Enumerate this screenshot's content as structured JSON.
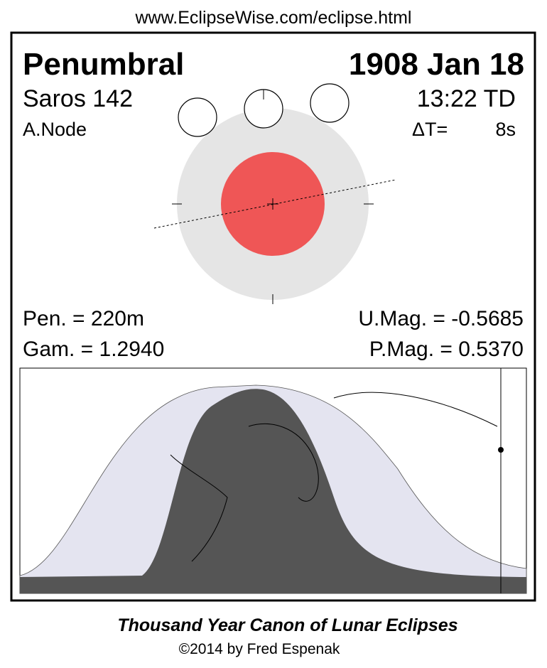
{
  "header": {
    "url": "www.EclipseWise.com/eclipse.html"
  },
  "eclipse": {
    "type": "Penumbral",
    "date": "1908 Jan 18",
    "saros": "Saros 142",
    "time": "13:22 TD",
    "node": "A.Node",
    "delta_t_label": "ΔT=",
    "delta_t_value": "8s",
    "pen_duration": "Pen. = 220m",
    "gamma": "Gam. = 1.2940",
    "umbral_magnitude": "U.Mag. = -0.5685",
    "penumbral_magnitude": "P.Mag. = 0.5370"
  },
  "footer": {
    "title": "Thousand Year Canon of Lunar Eclipses",
    "credit": "©2014 by Fred Espenak"
  }
}
